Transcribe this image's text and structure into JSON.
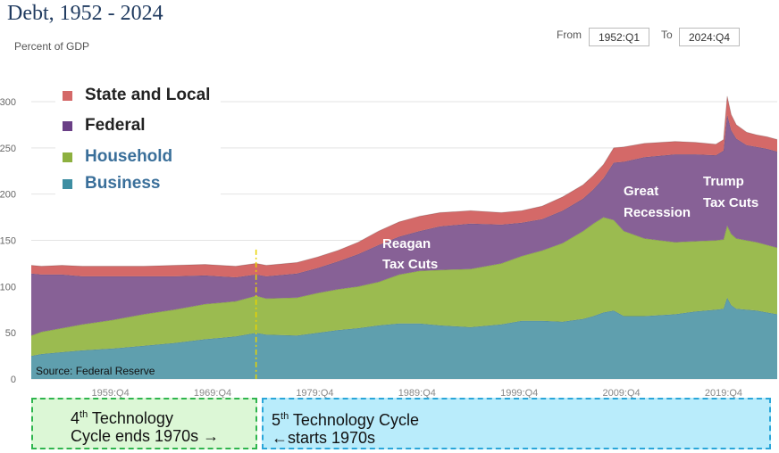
{
  "title": "Debt, 1952 - 2024",
  "range": {
    "from_label": "From",
    "from_value": "1952:Q1",
    "to_label": "To",
    "to_value": "2024:Q4"
  },
  "source": "Source: Federal Reserve",
  "colors": {
    "business": "#5f9fae",
    "household": "#9bbb50",
    "federal": "#876196",
    "state_local": "#d46968",
    "grid": "#e3e3e3",
    "marker": "#e8d300"
  },
  "annotations": {
    "reagan": [
      "Reagan",
      "Tax Cuts"
    ],
    "great_recession": [
      "Great",
      "Recession"
    ],
    "trump": [
      "Trump",
      "Tax Cuts"
    ]
  },
  "cycles": {
    "fourth": {
      "line1_pre": "4",
      "line1_sup": "th",
      "line1_post": " Technology",
      "line2": "Cycle ends 1970s →"
    },
    "fifth": {
      "line1_pre": "5",
      "line1_sup": "th",
      "line1_post": " Technology Cycle",
      "line2": "←starts 1970s"
    }
  },
  "chart_data": {
    "type": "area",
    "stacked": true,
    "title": "Debt, 1952 - 2024",
    "ylabel": "Percent of GDP",
    "xlabel": "",
    "ylim": [
      0,
      300
    ],
    "xlim": [
      1952.0,
      2025.0
    ],
    "yticks": [
      0,
      50,
      100,
      150,
      200,
      250,
      300
    ],
    "xtick_labels": [
      {
        "t": 1959.75,
        "label": "1959:Q4"
      },
      {
        "t": 1969.75,
        "label": "1969:Q4"
      },
      {
        "t": 1979.75,
        "label": "1979:Q4"
      },
      {
        "t": 1989.75,
        "label": "1989:Q4"
      },
      {
        "t": 1999.75,
        "label": "1999:Q4"
      },
      {
        "t": 2009.75,
        "label": "2009:Q4"
      },
      {
        "t": 2019.75,
        "label": "2019:Q4"
      }
    ],
    "grid": true,
    "legend_position": "top-left",
    "marker_year": 1974,
    "x": [
      1952,
      1953,
      1955,
      1957,
      1960,
      1963,
      1966,
      1969,
      1972,
      1974,
      1975,
      1978,
      1980,
      1982,
      1984,
      1986,
      1988,
      1990,
      1992,
      1995,
      1998,
      2000,
      2002,
      2004,
      2006,
      2007,
      2008,
      2009,
      2010,
      2012,
      2015,
      2017,
      2019,
      2019.75,
      2020.1,
      2020.5,
      2021,
      2022,
      2023,
      2024,
      2025
    ],
    "series": [
      {
        "name": "Business",
        "values": [
          25,
          27,
          29,
          31,
          33,
          36,
          39,
          43,
          46,
          50,
          48,
          47,
          50,
          53,
          55,
          58,
          60,
          60,
          58,
          56,
          59,
          63,
          63,
          62,
          65,
          68,
          72,
          74,
          68,
          68,
          70,
          73,
          75,
          76,
          88,
          80,
          76,
          75,
          74,
          72,
          70
        ]
      },
      {
        "name": "Household",
        "values": [
          22,
          24,
          26,
          28,
          31,
          34,
          36,
          38,
          38,
          40,
          39,
          41,
          43,
          44,
          45,
          47,
          53,
          57,
          60,
          63,
          66,
          70,
          76,
          85,
          95,
          100,
          103,
          98,
          92,
          84,
          78,
          76,
          75,
          75,
          78,
          77,
          76,
          75,
          74,
          73,
          72
        ]
      },
      {
        "name": "Federal",
        "values": [
          67,
          62,
          58,
          52,
          47,
          41,
          36,
          31,
          26,
          23,
          24,
          26,
          27,
          30,
          35,
          40,
          41,
          43,
          47,
          49,
          42,
          36,
          34,
          35,
          35,
          37,
          42,
          62,
          75,
          88,
          95,
          94,
          92,
          96,
          120,
          112,
          108,
          103,
          103,
          104,
          104
        ]
      },
      {
        "name": "State and Local",
        "values": [
          9,
          9,
          10,
          11,
          11,
          11,
          12,
          12,
          12,
          12,
          12,
          12,
          12,
          12,
          13,
          15,
          16,
          16,
          15,
          14,
          13,
          13,
          14,
          15,
          15,
          15,
          15,
          16,
          16,
          15,
          14,
          13,
          12,
          12,
          20,
          17,
          15,
          14,
          13,
          13,
          13
        ]
      }
    ]
  }
}
